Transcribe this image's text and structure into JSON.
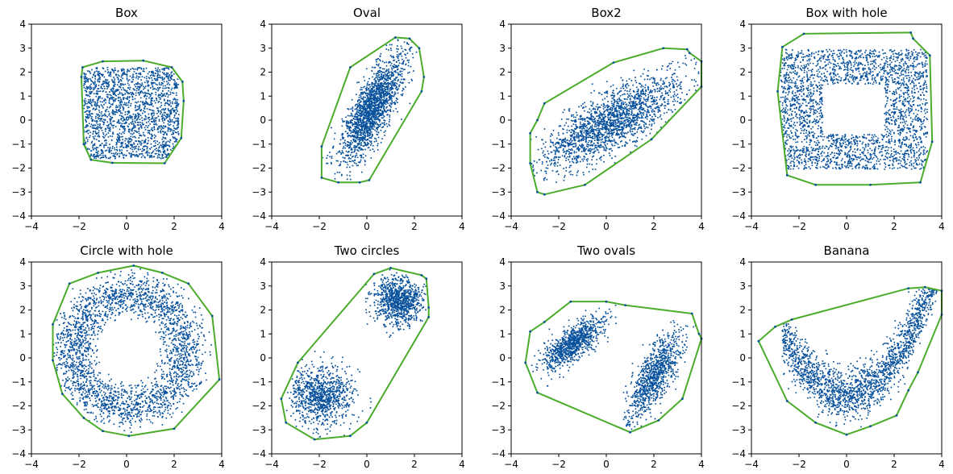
{
  "colors": {
    "points": "#08519c",
    "hull": "#4aac2a"
  },
  "chart_data": [
    {
      "type": "scatter",
      "title": "Box",
      "xlim": [
        -4,
        4
      ],
      "ylim": [
        -4,
        4
      ],
      "xticks": [
        -4,
        -2,
        0,
        2,
        4
      ],
      "yticks": [
        -4,
        -3,
        -2,
        -1,
        0,
        1,
        2,
        3,
        4
      ],
      "shape": {
        "kind": "box",
        "cx": 0.2,
        "cy": 0.3,
        "rx": 2.0,
        "ry": 1.9
      },
      "hull": [
        [
          -1.85,
          2.2
        ],
        [
          -1.0,
          2.45
        ],
        [
          0.7,
          2.48
        ],
        [
          1.9,
          2.2
        ],
        [
          2.35,
          1.6
        ],
        [
          2.4,
          0.8
        ],
        [
          2.3,
          -0.75
        ],
        [
          1.6,
          -1.8
        ],
        [
          -0.6,
          -1.78
        ],
        [
          -1.5,
          -1.65
        ],
        [
          -1.8,
          -1.0
        ],
        [
          -1.9,
          1.8
        ]
      ]
    },
    {
      "type": "scatter",
      "title": "Oval",
      "xlim": [
        -4,
        4
      ],
      "ylim": [
        -4,
        4
      ],
      "xticks": [
        -4,
        -2,
        0,
        2,
        4
      ],
      "yticks": [
        -4,
        -3,
        -2,
        -1,
        0,
        1,
        2,
        3,
        4
      ],
      "shape": {
        "kind": "oval",
        "cx": 0.25,
        "cy": 0.5,
        "major": 3.0,
        "minor": 0.9,
        "angle": 62
      },
      "hull": [
        [
          -0.7,
          2.2
        ],
        [
          1.2,
          3.45
        ],
        [
          1.8,
          3.4
        ],
        [
          2.2,
          3.0
        ],
        [
          2.4,
          1.8
        ],
        [
          2.3,
          1.2
        ],
        [
          0.1,
          -2.5
        ],
        [
          -0.3,
          -2.6
        ],
        [
          -1.2,
          -2.6
        ],
        [
          -1.9,
          -2.4
        ],
        [
          -1.9,
          -1.1
        ]
      ]
    },
    {
      "type": "scatter",
      "title": "Box2",
      "xlim": [
        -4,
        4
      ],
      "ylim": [
        -4,
        4
      ],
      "xticks": [
        -4,
        -2,
        0,
        2,
        4
      ],
      "yticks": [
        -4,
        -3,
        -2,
        -1,
        0,
        1,
        2,
        3,
        4
      ],
      "shape": {
        "kind": "oval",
        "cx": 0.2,
        "cy": -0.1,
        "major": 4.0,
        "minor": 1.3,
        "angle": 31
      },
      "hull": [
        [
          -3.2,
          -0.55
        ],
        [
          -2.9,
          0.0
        ],
        [
          -2.6,
          0.7
        ],
        [
          0.3,
          2.4
        ],
        [
          2.4,
          3.0
        ],
        [
          3.4,
          2.95
        ],
        [
          3.5,
          2.8
        ],
        [
          4.0,
          2.45
        ],
        [
          4.0,
          1.4
        ],
        [
          1.9,
          -0.8
        ],
        [
          -0.9,
          -2.7
        ],
        [
          -2.6,
          -3.1
        ],
        [
          -2.9,
          -3.0
        ],
        [
          -3.2,
          -1.8
        ]
      ]
    },
    {
      "type": "scatter",
      "title": "Box with hole",
      "xlim": [
        -4,
        4
      ],
      "ylim": [
        -4,
        4
      ],
      "xticks": [
        -4,
        -2,
        0,
        2,
        4
      ],
      "yticks": [
        -4,
        -3,
        -2,
        -1,
        0,
        1,
        2,
        3,
        4
      ],
      "shape": {
        "kind": "frame",
        "cx": 0.3,
        "cy": 0.45,
        "ox": 3.1,
        "oy": 2.5,
        "ix": 1.3,
        "iy": 1.05
      },
      "hull": [
        [
          -2.7,
          3.05
        ],
        [
          -1.8,
          3.6
        ],
        [
          2.7,
          3.65
        ],
        [
          2.8,
          3.4
        ],
        [
          3.5,
          2.7
        ],
        [
          3.6,
          -0.9
        ],
        [
          3.1,
          -2.6
        ],
        [
          1.0,
          -2.7
        ],
        [
          -1.3,
          -2.7
        ],
        [
          -2.5,
          -2.3
        ],
        [
          -2.9,
          1.2
        ]
      ]
    },
    {
      "type": "scatter",
      "title": "Circle with hole",
      "xlim": [
        -4,
        4
      ],
      "ylim": [
        -4,
        4
      ],
      "xticks": [
        -4,
        -2,
        0,
        2,
        4
      ],
      "yticks": [
        -4,
        -3,
        -2,
        -1,
        0,
        1,
        2,
        3,
        4
      ],
      "shape": {
        "kind": "ring",
        "cx": 0.1,
        "cy": 0.3,
        "r1": 1.5,
        "r2": 3.3
      },
      "hull": [
        [
          -2.4,
          3.1
        ],
        [
          -1.2,
          3.55
        ],
        [
          0.3,
          3.85
        ],
        [
          1.5,
          3.55
        ],
        [
          2.6,
          3.1
        ],
        [
          3.6,
          1.75
        ],
        [
          3.9,
          -0.9
        ],
        [
          2.0,
          -2.95
        ],
        [
          0.1,
          -3.25
        ],
        [
          -1.0,
          -3.05
        ],
        [
          -1.8,
          -2.5
        ],
        [
          -2.7,
          -1.5
        ],
        [
          -3.1,
          -0.1
        ],
        [
          -3.1,
          1.4
        ]
      ]
    },
    {
      "type": "scatter",
      "title": "Two circles",
      "xlim": [
        -4,
        4
      ],
      "ylim": [
        -4,
        4
      ],
      "xticks": [
        -4,
        -2,
        0,
        2,
        4
      ],
      "yticks": [
        -4,
        -3,
        -2,
        -1,
        0,
        1,
        2,
        3,
        4
      ],
      "shape": {
        "kind": "blobs",
        "blobs": [
          {
            "cx": 1.3,
            "cy": 2.4,
            "r": 1.2
          },
          {
            "cx": -1.9,
            "cy": -1.6,
            "r": 1.5
          }
        ]
      },
      "hull": [
        [
          0.3,
          3.5
        ],
        [
          1.0,
          3.75
        ],
        [
          2.3,
          3.45
        ],
        [
          2.5,
          3.3
        ],
        [
          2.6,
          2.1
        ],
        [
          2.6,
          1.7
        ],
        [
          0.0,
          -2.7
        ],
        [
          -0.7,
          -3.25
        ],
        [
          -2.2,
          -3.4
        ],
        [
          -3.4,
          -2.7
        ],
        [
          -3.6,
          -1.7
        ],
        [
          -2.9,
          -0.2
        ]
      ]
    },
    {
      "type": "scatter",
      "title": "Two ovals",
      "xlim": [
        -4,
        4
      ],
      "ylim": [
        -4,
        4
      ],
      "xticks": [
        -4,
        -2,
        0,
        2,
        4
      ],
      "yticks": [
        -4,
        -3,
        -2,
        -1,
        0,
        1,
        2,
        3,
        4
      ],
      "shape": {
        "kind": "ovals",
        "ovals": [
          {
            "cx": -1.4,
            "cy": 0.6,
            "major": 1.8,
            "minor": 0.7,
            "angle": 38
          },
          {
            "cx": 2.0,
            "cy": -0.8,
            "major": 2.5,
            "minor": 0.8,
            "angle": 62
          }
        ]
      },
      "hull": [
        [
          -3.2,
          1.1
        ],
        [
          -2.6,
          1.5
        ],
        [
          -1.5,
          2.35
        ],
        [
          0.0,
          2.35
        ],
        [
          0.8,
          2.2
        ],
        [
          3.6,
          1.85
        ],
        [
          3.9,
          1.0
        ],
        [
          4.0,
          0.8
        ],
        [
          3.2,
          -1.7
        ],
        [
          2.2,
          -2.6
        ],
        [
          1.0,
          -3.1
        ],
        [
          -2.9,
          -1.45
        ],
        [
          -3.4,
          -0.2
        ]
      ]
    },
    {
      "type": "scatter",
      "title": "Banana",
      "xlim": [
        -4,
        4
      ],
      "ylim": [
        -4,
        4
      ],
      "xticks": [
        -4,
        -2,
        0,
        2,
        4
      ],
      "yticks": [
        -4,
        -3,
        -2,
        -1,
        0,
        1,
        2,
        3,
        4
      ],
      "shape": {
        "kind": "banana",
        "a": 0.35,
        "c": -1.5,
        "xr": [
          -2.7,
          3.8
        ],
        "sd": 0.55
      },
      "hull": [
        [
          -3.7,
          0.7
        ],
        [
          -3.0,
          1.3
        ],
        [
          -2.3,
          1.6
        ],
        [
          2.6,
          2.9
        ],
        [
          3.3,
          2.95
        ],
        [
          4.0,
          2.8
        ],
        [
          4.0,
          1.8
        ],
        [
          3.0,
          -0.6
        ],
        [
          2.6,
          -1.35
        ],
        [
          2.1,
          -2.4
        ],
        [
          1.0,
          -2.85
        ],
        [
          0.0,
          -3.2
        ],
        [
          -1.3,
          -2.7
        ],
        [
          -2.5,
          -1.8
        ]
      ]
    }
  ]
}
